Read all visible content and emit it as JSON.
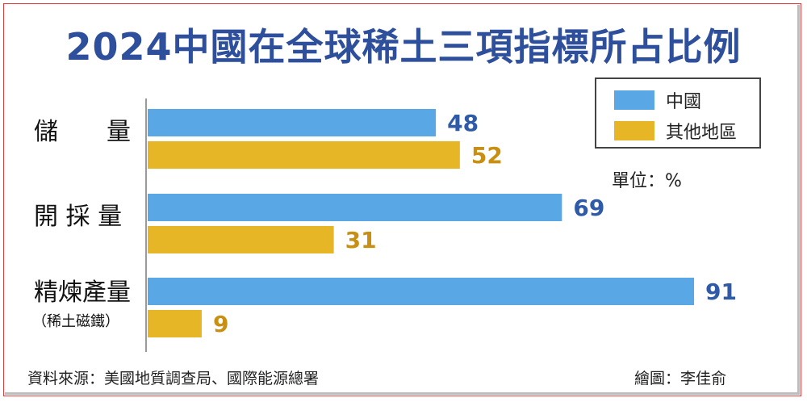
{
  "title": "2024中國在全球稀土三項指標所占比例",
  "legend": [
    {
      "label": "中國",
      "color": "#5aa7e6"
    },
    {
      "label": "其他地區",
      "color": "#e7b626"
    }
  ],
  "unit": "單位：%",
  "source": "資料來源：美國地質調查局、國際能源總署",
  "credit": "繪圖：李佳俞",
  "chart_data": {
    "type": "bar",
    "orientation": "horizontal",
    "categories": [
      "儲　　量",
      "開 採 量",
      "精煉產量"
    ],
    "category_sublabels": [
      "",
      "",
      "（稀土磁鐵）"
    ],
    "series": [
      {
        "name": "中國",
        "values": [
          48,
          69,
          91
        ],
        "color": "#5aa7e6",
        "label_color": "#2e5aa8"
      },
      {
        "name": "其他地區",
        "values": [
          52,
          31,
          9
        ],
        "color": "#e7b626",
        "label_color": "#c98f12"
      }
    ],
    "xlim": [
      0,
      100
    ],
    "ylabel": "",
    "xlabel": "",
    "grid": false,
    "legend_position": "top-right"
  }
}
